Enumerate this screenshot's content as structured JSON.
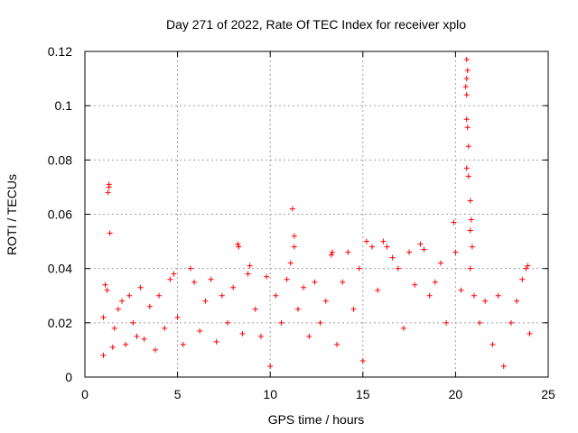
{
  "chart_data": {
    "type": "scatter",
    "title": "Day 271 of 2022, Rate Of TEC Index for receiver xplo",
    "xlabel": "GPS time / hours",
    "ylabel": "ROTI / TECUs",
    "xlim": [
      0,
      25
    ],
    "ylim": [
      0,
      0.12
    ],
    "x_ticks": [
      0,
      5,
      10,
      15,
      20,
      25
    ],
    "x_tick_labels": [
      "0",
      "5",
      "10",
      "15",
      "20",
      "25"
    ],
    "y_ticks": [
      0,
      0.02,
      0.04,
      0.06,
      0.08,
      0.1,
      0.12
    ],
    "y_tick_labels": [
      "0",
      "0.02",
      "0.04",
      "0.06",
      "0.08",
      "0.1",
      "0.12"
    ],
    "grid": true,
    "marker": "plus",
    "color": "#ff0000",
    "series": [
      {
        "points": [
          [
            1.0,
            0.008
          ],
          [
            1.0,
            0.022
          ],
          [
            1.1,
            0.034
          ],
          [
            1.2,
            0.032
          ],
          [
            1.3,
            0.07
          ],
          [
            1.3,
            0.071
          ],
          [
            1.25,
            0.068
          ],
          [
            1.35,
            0.053
          ],
          [
            1.5,
            0.011
          ],
          [
            1.6,
            0.018
          ],
          [
            1.8,
            0.025
          ],
          [
            2.0,
            0.028
          ],
          [
            2.2,
            0.012
          ],
          [
            2.4,
            0.03
          ],
          [
            2.6,
            0.02
          ],
          [
            2.8,
            0.015
          ],
          [
            3.0,
            0.033
          ],
          [
            3.2,
            0.014
          ],
          [
            3.5,
            0.026
          ],
          [
            3.8,
            0.01
          ],
          [
            4.0,
            0.03
          ],
          [
            4.3,
            0.018
          ],
          [
            4.6,
            0.036
          ],
          [
            4.8,
            0.038
          ],
          [
            5.0,
            0.022
          ],
          [
            5.3,
            0.012
          ],
          [
            5.7,
            0.04
          ],
          [
            5.9,
            0.035
          ],
          [
            6.2,
            0.017
          ],
          [
            6.5,
            0.028
          ],
          [
            6.8,
            0.036
          ],
          [
            7.1,
            0.013
          ],
          [
            7.4,
            0.03
          ],
          [
            7.7,
            0.02
          ],
          [
            8.0,
            0.033
          ],
          [
            8.3,
            0.048
          ],
          [
            8.25,
            0.049
          ],
          [
            8.5,
            0.016
          ],
          [
            8.8,
            0.038
          ],
          [
            8.9,
            0.041
          ],
          [
            9.2,
            0.025
          ],
          [
            9.5,
            0.015
          ],
          [
            9.8,
            0.037
          ],
          [
            10.0,
            0.004
          ],
          [
            10.3,
            0.03
          ],
          [
            10.6,
            0.02
          ],
          [
            10.9,
            0.036
          ],
          [
            11.2,
            0.062
          ],
          [
            11.3,
            0.052
          ],
          [
            11.3,
            0.048
          ],
          [
            11.1,
            0.042
          ],
          [
            11.5,
            0.025
          ],
          [
            11.8,
            0.033
          ],
          [
            12.1,
            0.015
          ],
          [
            12.4,
            0.035
          ],
          [
            12.7,
            0.02
          ],
          [
            13.0,
            0.028
          ],
          [
            13.3,
            0.045
          ],
          [
            13.35,
            0.046
          ],
          [
            13.6,
            0.012
          ],
          [
            13.9,
            0.035
          ],
          [
            14.2,
            0.046
          ],
          [
            14.5,
            0.025
          ],
          [
            14.8,
            0.04
          ],
          [
            15.0,
            0.006
          ],
          [
            15.2,
            0.05
          ],
          [
            15.5,
            0.048
          ],
          [
            15.8,
            0.032
          ],
          [
            16.1,
            0.05
          ],
          [
            16.3,
            0.048
          ],
          [
            16.6,
            0.044
          ],
          [
            16.9,
            0.04
          ],
          [
            17.2,
            0.018
          ],
          [
            17.5,
            0.046
          ],
          [
            17.8,
            0.034
          ],
          [
            18.1,
            0.049
          ],
          [
            18.3,
            0.047
          ],
          [
            18.6,
            0.03
          ],
          [
            18.9,
            0.035
          ],
          [
            19.2,
            0.042
          ],
          [
            19.5,
            0.02
          ],
          [
            19.9,
            0.057
          ],
          [
            20.0,
            0.046
          ],
          [
            20.3,
            0.032
          ],
          [
            20.6,
            0.117
          ],
          [
            20.65,
            0.113
          ],
          [
            20.6,
            0.11
          ],
          [
            20.55,
            0.107
          ],
          [
            20.6,
            0.104
          ],
          [
            20.6,
            0.095
          ],
          [
            20.65,
            0.092
          ],
          [
            20.7,
            0.085
          ],
          [
            20.6,
            0.077
          ],
          [
            20.7,
            0.074
          ],
          [
            20.8,
            0.065
          ],
          [
            20.85,
            0.058
          ],
          [
            20.8,
            0.054
          ],
          [
            20.9,
            0.048
          ],
          [
            20.8,
            0.04
          ],
          [
            21.0,
            0.03
          ],
          [
            21.3,
            0.02
          ],
          [
            21.6,
            0.028
          ],
          [
            22.0,
            0.012
          ],
          [
            22.3,
            0.03
          ],
          [
            22.6,
            0.004
          ],
          [
            23.0,
            0.02
          ],
          [
            23.3,
            0.028
          ],
          [
            23.6,
            0.036
          ],
          [
            23.8,
            0.04
          ],
          [
            23.9,
            0.041
          ],
          [
            24.0,
            0.016
          ]
        ]
      }
    ]
  }
}
